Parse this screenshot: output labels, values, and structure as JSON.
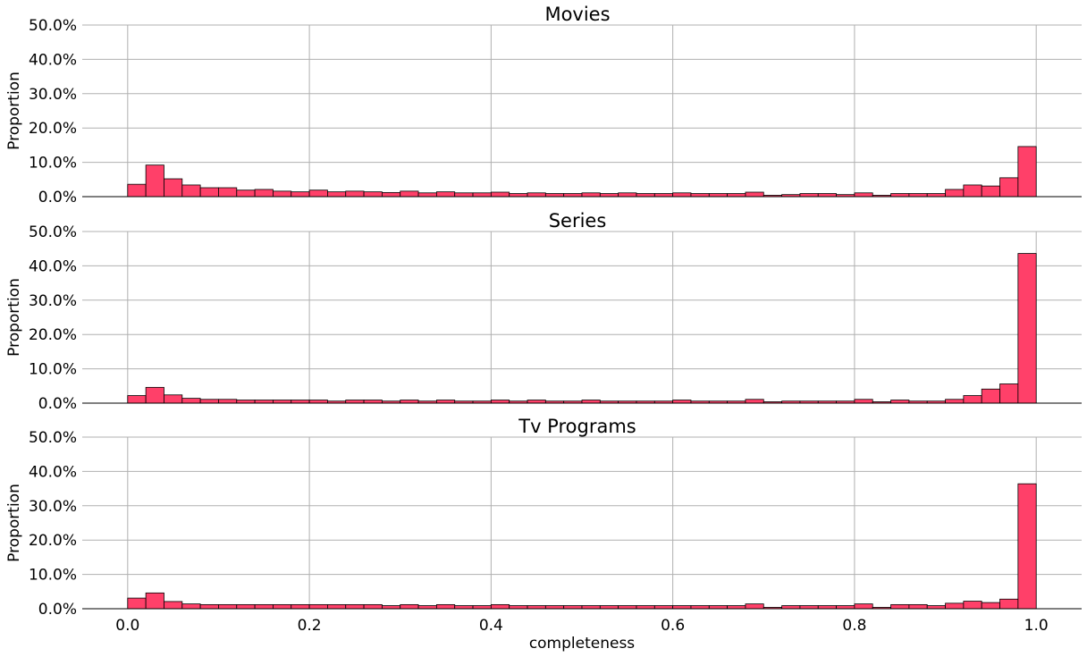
{
  "chart_data": {
    "type": "bar",
    "bin_width": 0.02,
    "x_range": [
      0.0,
      1.0
    ],
    "xlim": [
      -0.05,
      1.05
    ],
    "ylim": [
      0,
      0.5
    ],
    "grid": true,
    "colors": {
      "bar": "#ff4069",
      "edge": "#000000"
    },
    "xlabel": "completeness",
    "x_ticks": [
      "0.0",
      "0.2",
      "0.4",
      "0.6",
      "0.8",
      "1.0"
    ],
    "x_tick_values": [
      0.0,
      0.2,
      0.4,
      0.6,
      0.8,
      1.0
    ],
    "y_ticks": [
      "0.0%",
      "10.0%",
      "20.0%",
      "30.0%",
      "40.0%",
      "50.0%"
    ],
    "y_tick_values": [
      0.0,
      0.1,
      0.2,
      0.3,
      0.4,
      0.5
    ],
    "panels": [
      {
        "title": "Movies",
        "ylabel": "Proportion",
        "values": [
          0.036,
          0.092,
          0.052,
          0.034,
          0.026,
          0.026,
          0.019,
          0.021,
          0.016,
          0.014,
          0.019,
          0.014,
          0.016,
          0.014,
          0.012,
          0.016,
          0.011,
          0.014,
          0.011,
          0.011,
          0.013,
          0.009,
          0.011,
          0.009,
          0.009,
          0.011,
          0.009,
          0.011,
          0.009,
          0.009,
          0.011,
          0.009,
          0.009,
          0.009,
          0.013,
          0.004,
          0.006,
          0.009,
          0.009,
          0.006,
          0.011,
          0.004,
          0.009,
          0.009,
          0.009,
          0.021,
          0.034,
          0.031,
          0.055,
          0.146
        ]
      },
      {
        "title": "Series",
        "ylabel": "Proportion",
        "values": [
          0.022,
          0.046,
          0.024,
          0.014,
          0.011,
          0.011,
          0.009,
          0.009,
          0.009,
          0.009,
          0.009,
          0.006,
          0.009,
          0.009,
          0.006,
          0.009,
          0.006,
          0.009,
          0.006,
          0.006,
          0.009,
          0.006,
          0.009,
          0.006,
          0.006,
          0.009,
          0.006,
          0.006,
          0.006,
          0.006,
          0.009,
          0.006,
          0.006,
          0.006,
          0.011,
          0.004,
          0.006,
          0.006,
          0.006,
          0.006,
          0.011,
          0.004,
          0.009,
          0.006,
          0.006,
          0.011,
          0.022,
          0.041,
          0.056,
          0.436
        ]
      },
      {
        "title": "Tv Programs",
        "ylabel": "Proportion",
        "values": [
          0.031,
          0.046,
          0.021,
          0.014,
          0.012,
          0.012,
          0.012,
          0.012,
          0.012,
          0.012,
          0.012,
          0.012,
          0.012,
          0.012,
          0.009,
          0.012,
          0.009,
          0.012,
          0.009,
          0.009,
          0.012,
          0.009,
          0.009,
          0.009,
          0.009,
          0.009,
          0.009,
          0.009,
          0.009,
          0.009,
          0.009,
          0.009,
          0.009,
          0.009,
          0.014,
          0.004,
          0.009,
          0.009,
          0.009,
          0.009,
          0.014,
          0.004,
          0.012,
          0.012,
          0.009,
          0.016,
          0.022,
          0.018,
          0.028,
          0.364
        ]
      }
    ]
  }
}
